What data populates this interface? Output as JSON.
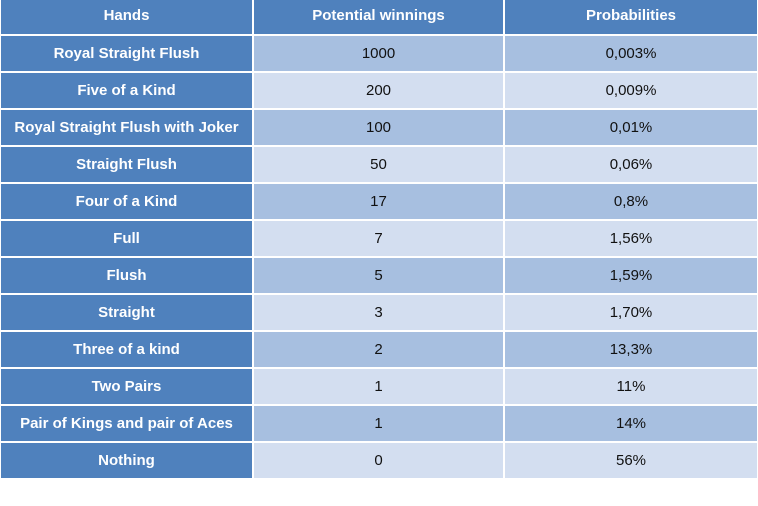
{
  "table": {
    "headers": [
      "Hands",
      "Potential winnings",
      "Probabilities"
    ],
    "rows": [
      {
        "hand": "Royal Straight Flush",
        "winnings": "1000",
        "probability": "0,003%"
      },
      {
        "hand": "Five of a Kind",
        "winnings": "200",
        "probability": "0,009%"
      },
      {
        "hand": "Royal Straight Flush with Joker",
        "winnings": "100",
        "probability": "0,01%"
      },
      {
        "hand": "Straight Flush",
        "winnings": "50",
        "probability": "0,06%"
      },
      {
        "hand": "Four of a Kind",
        "winnings": "17",
        "probability": "0,8%"
      },
      {
        "hand": "Full",
        "winnings": "7",
        "probability": "1,56%"
      },
      {
        "hand": "Flush",
        "winnings": "5",
        "probability": "1,59%"
      },
      {
        "hand": "Straight",
        "winnings": "3",
        "probability": "1,70%"
      },
      {
        "hand": "Three of a kind",
        "winnings": "2",
        "probability": "13,3%"
      },
      {
        "hand": "Two Pairs",
        "winnings": "1",
        "probability": "11%"
      },
      {
        "hand": "Pair of Kings and pair of Aces",
        "winnings": "1",
        "probability": "14%"
      },
      {
        "hand": "Nothing",
        "winnings": "0",
        "probability": "56%"
      }
    ]
  },
  "colors": {
    "header_bg": "#4f81bd",
    "header_text": "#ffffff",
    "row_odd_bg": "#a7bfe0",
    "row_even_bg": "#d3def0"
  }
}
